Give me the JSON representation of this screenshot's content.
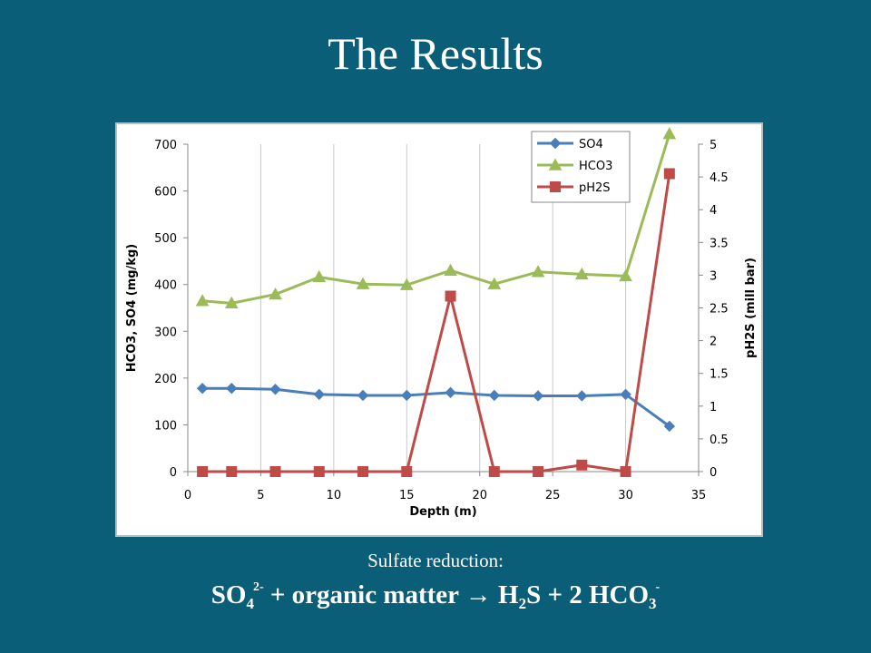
{
  "slide": {
    "title": "The Results",
    "caption": "Sulfate reduction:",
    "equation": {
      "so": "SO",
      "so_sub": "4",
      "so_sup": "2-",
      "middle": " + organic matter → H",
      "h_sub": "2",
      "s_part": "S + 2 HCO",
      "hco_sub": "3",
      "hco_sup": "-"
    }
  },
  "colors": {
    "background": "#0b5e78",
    "so4": "#4a7ebb",
    "hco3": "#9bbb59",
    "ph2s": "#be4b48"
  },
  "chart_data": {
    "type": "line",
    "xlabel": "Depth (m)",
    "ylabel_left": "HCO3, SO4 (mg/kg)",
    "ylabel_right": "pH2S (mill bar)",
    "xlim": [
      0,
      35
    ],
    "xticks": [
      0,
      5,
      10,
      15,
      20,
      25,
      30,
      35
    ],
    "ylim_left": [
      0,
      700
    ],
    "yticks_left": [
      0,
      100,
      200,
      300,
      400,
      500,
      600,
      700
    ],
    "ylim_right": [
      0,
      5
    ],
    "yticks_right": [
      0,
      0.5,
      1,
      1.5,
      2,
      2.5,
      3,
      3.5,
      4,
      4.5,
      5
    ],
    "grid": "vertical",
    "legend": "top-right",
    "series": [
      {
        "name": "SO4",
        "axis": "left",
        "marker": "diamond",
        "color": "#4a7ebb",
        "x": [
          1,
          3,
          6,
          9,
          12,
          15,
          18,
          21,
          24,
          27,
          30,
          33
        ],
        "y": [
          178,
          178,
          176,
          165,
          163,
          163,
          169,
          163,
          162,
          162,
          165,
          97
        ]
      },
      {
        "name": "HCO3",
        "axis": "left",
        "marker": "triangle",
        "color": "#9bbb59",
        "x": [
          1,
          3,
          6,
          9,
          12,
          15,
          18,
          21,
          24,
          27,
          30,
          33
        ],
        "y": [
          365,
          360,
          379,
          416,
          401,
          399,
          430,
          401,
          427,
          422,
          418,
          722
        ]
      },
      {
        "name": "pH2S",
        "axis": "right",
        "marker": "square",
        "color": "#be4b48",
        "x": [
          1,
          3,
          6,
          9,
          12,
          15,
          18,
          21,
          24,
          27,
          30,
          33
        ],
        "y": [
          0,
          0,
          0,
          0,
          0,
          0,
          2.68,
          0,
          0,
          0.1,
          0,
          4.55
        ]
      }
    ]
  }
}
